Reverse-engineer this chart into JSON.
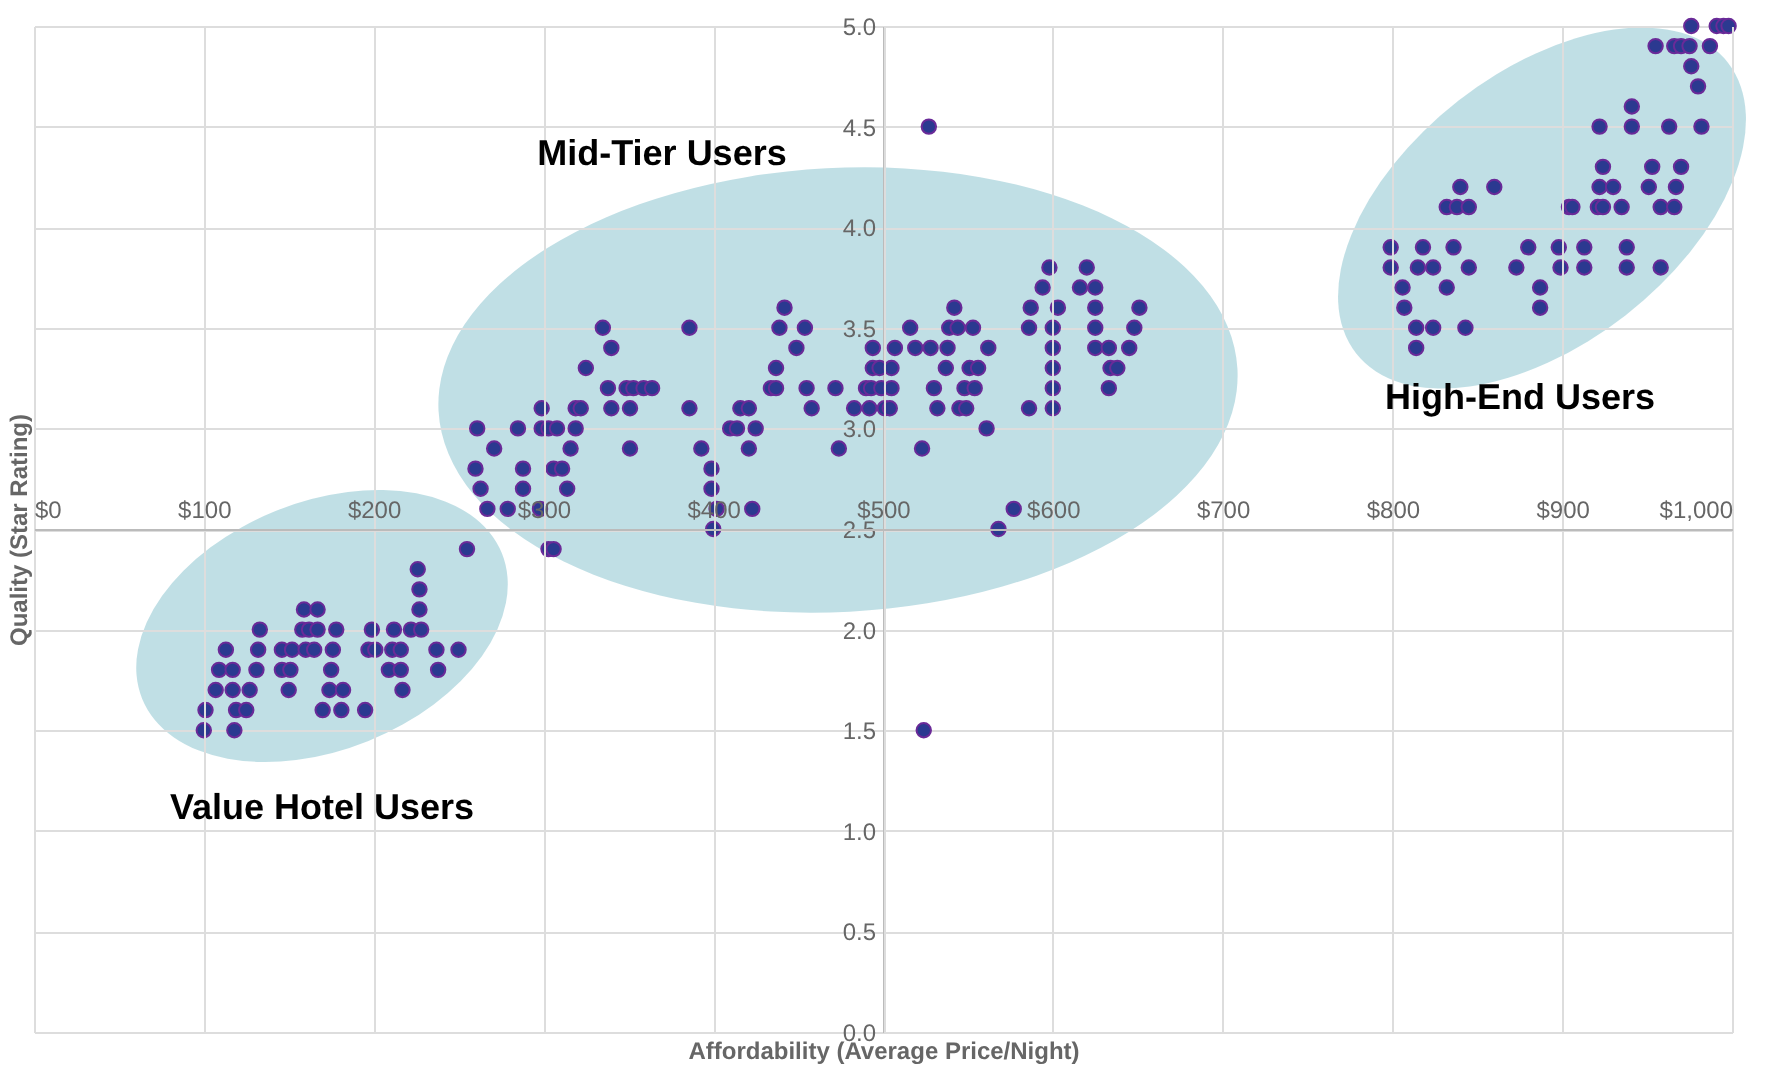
{
  "chart_data": {
    "type": "scatter",
    "xlabel": "Affordability (Average Price/Night)",
    "ylabel": "Quality (Star Rating)",
    "x": [
      100,
      101,
      118,
      107,
      117,
      109,
      117,
      113,
      119,
      125,
      127,
      131,
      132,
      133,
      146,
      152,
      146,
      151,
      150,
      159,
      167,
      158,
      162,
      167,
      160,
      165,
      176,
      178,
      175,
      174,
      182,
      170,
      181,
      195,
      199,
      197,
      201,
      212,
      211,
      216,
      209,
      216,
      217,
      222,
      228,
      227,
      227,
      226,
      237,
      238,
      250,
      255,
      303,
      306,
      261,
      271,
      260,
      263,
      267,
      279,
      285,
      288,
      288,
      298,
      299,
      299,
      303,
      308,
      306,
      311,
      314,
      316,
      319,
      319,
      322,
      325,
      335,
      340,
      338,
      340,
      349,
      353,
      359,
      364,
      351,
      351,
      386,
      386,
      393,
      399,
      399,
      402,
      400,
      410,
      414,
      416,
      421,
      425,
      421,
      423,
      434,
      437,
      437,
      439,
      442,
      449,
      454,
      455,
      458,
      472,
      474,
      483,
      490,
      493,
      492,
      494,
      494,
      498,
      499,
      505,
      501,
      504,
      505,
      507,
      516,
      519,
      523,
      527,
      528,
      530,
      532,
      537,
      538,
      539,
      542,
      544,
      545,
      549,
      548,
      551,
      556,
      553,
      554,
      562,
      561,
      568,
      577,
      586,
      586,
      587,
      594,
      598,
      600,
      600,
      600,
      600,
      600,
      603,
      616,
      620,
      625,
      625,
      625,
      625,
      633,
      634,
      638,
      633,
      645,
      648,
      651,
      524,
      976,
      991,
      995,
      998,
      955,
      966,
      970,
      975,
      987,
      976,
      980,
      941,
      922,
      941,
      963,
      982,
      924,
      953,
      970,
      922,
      930,
      951,
      967,
      840,
      860,
      832,
      838,
      845,
      904,
      906,
      921,
      924,
      935,
      958,
      966,
      799,
      818,
      836,
      880,
      898,
      913,
      938,
      799,
      815,
      824,
      845,
      873,
      899,
      913,
      938,
      958,
      806,
      832,
      887,
      807,
      887,
      814,
      824,
      843,
      814
    ],
    "values": [
      1.5,
      1.6,
      1.5,
      1.7,
      1.7,
      1.8,
      1.8,
      1.9,
      1.6,
      1.6,
      1.7,
      1.8,
      1.9,
      2.0,
      1.9,
      1.9,
      1.8,
      1.8,
      1.7,
      2.1,
      2.1,
      2.0,
      2.0,
      2.0,
      1.9,
      1.9,
      1.9,
      2.0,
      1.8,
      1.7,
      1.7,
      1.6,
      1.6,
      1.6,
      2.0,
      1.9,
      1.9,
      2.0,
      1.9,
      1.9,
      1.8,
      1.8,
      1.7,
      2.0,
      2.0,
      2.1,
      2.2,
      2.3,
      1.9,
      1.8,
      1.9,
      2.4,
      2.4,
      2.4,
      3.0,
      2.9,
      2.8,
      2.7,
      2.6,
      2.6,
      3.0,
      2.8,
      2.7,
      2.6,
      3.1,
      3.0,
      3.0,
      3.0,
      2.8,
      2.8,
      2.7,
      2.9,
      3.0,
      3.1,
      3.1,
      3.3,
      3.5,
      3.4,
      3.2,
      3.1,
      3.2,
      3.2,
      3.2,
      3.2,
      3.1,
      2.9,
      3.5,
      3.1,
      2.9,
      2.8,
      2.7,
      2.6,
      2.5,
      3.0,
      3.0,
      3.1,
      3.1,
      3.0,
      2.9,
      2.6,
      3.2,
      3.2,
      3.3,
      3.5,
      3.6,
      3.4,
      3.5,
      3.2,
      3.1,
      3.2,
      2.9,
      3.1,
      3.2,
      3.2,
      3.1,
      3.4,
      3.3,
      3.3,
      3.2,
      3.2,
      3.1,
      3.1,
      3.3,
      3.4,
      3.5,
      3.4,
      2.9,
      4.5,
      3.4,
      3.2,
      3.1,
      3.3,
      3.4,
      3.5,
      3.6,
      3.5,
      3.1,
      3.1,
      3.2,
      3.3,
      3.3,
      3.5,
      3.2,
      3.4,
      3.0,
      2.5,
      2.6,
      3.1,
      3.5,
      3.6,
      3.7,
      3.8,
      3.5,
      3.4,
      3.3,
      3.2,
      3.1,
      3.6,
      3.7,
      3.8,
      3.7,
      3.6,
      3.5,
      3.4,
      3.4,
      3.3,
      3.3,
      3.2,
      3.4,
      3.5,
      3.6,
      1.5,
      5.0,
      5.0,
      5.0,
      5.0,
      4.9,
      4.9,
      4.9,
      4.9,
      4.9,
      4.8,
      4.7,
      4.6,
      4.5,
      4.5,
      4.5,
      4.5,
      4.3,
      4.3,
      4.3,
      4.2,
      4.2,
      4.2,
      4.2,
      4.2,
      4.2,
      4.1,
      4.1,
      4.1,
      4.1,
      4.1,
      4.1,
      4.1,
      4.1,
      4.1,
      4.1,
      3.9,
      3.9,
      3.9,
      3.9,
      3.9,
      3.9,
      3.9,
      3.8,
      3.8,
      3.8,
      3.8,
      3.8,
      3.8,
      3.8,
      3.8,
      3.8,
      3.7,
      3.7,
      3.7,
      3.6,
      3.6,
      3.5,
      3.5,
      3.5,
      3.4
    ],
    "color": "#2b3990",
    "marker": "circle",
    "grid": true,
    "xlim": [
      0,
      1000
    ],
    "xticks": [
      {
        "value": 0,
        "label": "$0"
      },
      {
        "value": 100,
        "label": "$100"
      },
      {
        "value": 200,
        "label": "$200"
      },
      {
        "value": 300,
        "label": "$300"
      },
      {
        "value": 400,
        "label": "$400"
      },
      {
        "value": 500,
        "label": "$500"
      },
      {
        "value": 600,
        "label": "$600"
      },
      {
        "value": 700,
        "label": "$700"
      },
      {
        "value": 800,
        "label": "$800"
      },
      {
        "value": 900,
        "label": "$900"
      },
      {
        "value": 1000,
        "label": "$1,000"
      }
    ],
    "ylim": [
      0,
      5
    ],
    "yticks": [
      {
        "value": 0,
        "label": "0.0"
      },
      0.5,
      {
        "value": 1,
        "label": "1.0"
      },
      1.5,
      {
        "value": 2,
        "label": "2.0"
      },
      2.5,
      {
        "value": 3,
        "label": "3.0"
      },
      3.5,
      {
        "value": 4,
        "label": "4.0"
      },
      4.5,
      {
        "value": 5,
        "label": "5.0"
      }
    ],
    "annotations": [
      "Mid-Tier Users",
      "High-End Users",
      "Value Hotel Users"
    ]
  }
}
